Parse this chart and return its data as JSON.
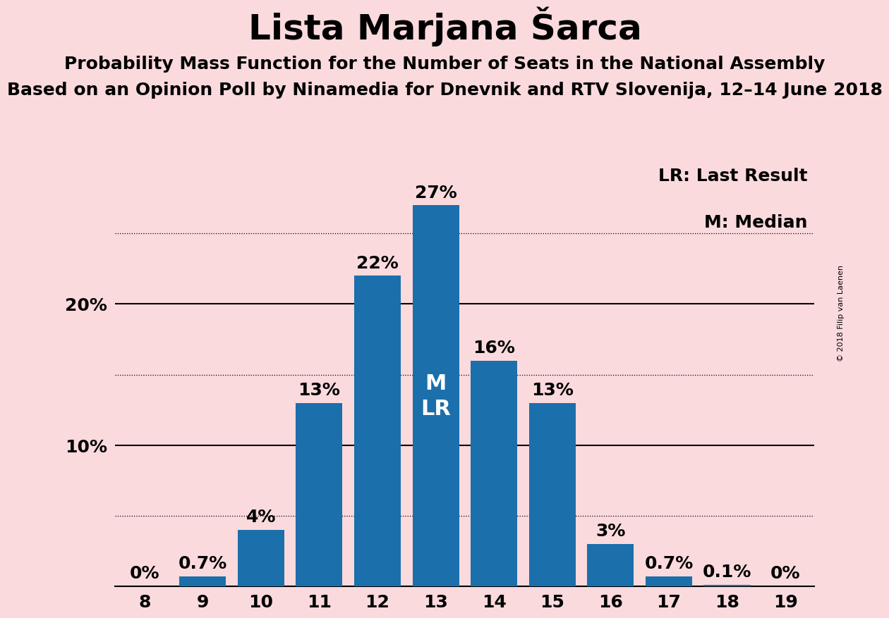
{
  "title": "Lista Marjana Šarca",
  "subtitle1": "Probability Mass Function for the Number of Seats in the National Assembly",
  "subtitle2": "Based on an Opinion Poll by Ninamedia for Dnevnik and RTV Slovenija, 12–14 June 2018",
  "copyright": "© 2018 Filip van Laenen",
  "seats": [
    8,
    9,
    10,
    11,
    12,
    13,
    14,
    15,
    16,
    17,
    18,
    19
  ],
  "probabilities": [
    0.0,
    0.7,
    4.0,
    13.0,
    22.0,
    27.0,
    16.0,
    13.0,
    3.0,
    0.7,
    0.1,
    0.0
  ],
  "bar_color": "#1B6FAB",
  "background_color": "#FADADD",
  "median_seat": 13,
  "last_result_seat": 13,
  "ylim": [
    0,
    30
  ],
  "dotted_lines": [
    5,
    15,
    25
  ],
  "solid_lines": [
    10,
    20
  ],
  "legend_lr": "LR: Last Result",
  "legend_m": "M: Median",
  "annotations_inside": {
    "13": [
      "M",
      "LR"
    ]
  },
  "title_fontsize": 36,
  "subtitle1_fontsize": 18,
  "subtitle2_fontsize": 18,
  "bar_label_fontsize": 18,
  "tick_fontsize": 18,
  "copyright_fontsize": 8
}
